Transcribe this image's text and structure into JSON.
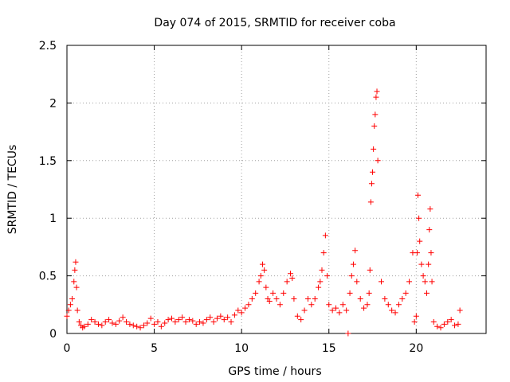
{
  "chart_data": {
    "type": "scatter",
    "title": "Day 074 of 2015, SRMTID for receiver coba",
    "xlabel": "GPS time / hours",
    "ylabel": "SRMTID / TECUs",
    "xlim": [
      0,
      24
    ],
    "ylim": [
      0,
      2.5
    ],
    "grid": true,
    "x_ticks": [
      0,
      5,
      10,
      15,
      20
    ],
    "x_tick_labels": [
      "0",
      "5",
      "10",
      "15",
      "20"
    ],
    "y_ticks": [
      0,
      0.5,
      1,
      1.5,
      2,
      2.5
    ],
    "y_tick_labels": [
      "0",
      "0.5",
      "1",
      "1.5",
      "2",
      "2.5"
    ],
    "marker": "+",
    "series": [
      {
        "name": "SRMTID",
        "color": "#ff0000",
        "x": [
          0.0,
          0.1,
          0.2,
          0.3,
          0.4,
          0.45,
          0.5,
          0.55,
          0.6,
          0.7,
          0.8,
          0.9,
          1.0,
          1.2,
          1.4,
          1.6,
          1.8,
          2.0,
          2.2,
          2.4,
          2.6,
          2.8,
          3.0,
          3.2,
          3.4,
          3.6,
          3.8,
          4.0,
          4.2,
          4.4,
          4.6,
          4.8,
          5.0,
          5.2,
          5.4,
          5.6,
          5.8,
          6.0,
          6.2,
          6.4,
          6.6,
          6.8,
          7.0,
          7.2,
          7.4,
          7.6,
          7.8,
          8.0,
          8.2,
          8.4,
          8.6,
          8.8,
          9.0,
          9.2,
          9.4,
          9.6,
          9.8,
          10.0,
          10.2,
          10.4,
          10.6,
          10.8,
          11.0,
          11.1,
          11.2,
          11.3,
          11.4,
          11.5,
          11.6,
          11.8,
          12.0,
          12.2,
          12.4,
          12.6,
          12.8,
          12.9,
          13.0,
          13.2,
          13.4,
          13.6,
          13.8,
          14.0,
          14.2,
          14.4,
          14.5,
          14.6,
          14.7,
          14.8,
          14.9,
          15.0,
          15.2,
          15.4,
          15.6,
          15.8,
          16.0,
          16.1,
          16.2,
          16.3,
          16.4,
          16.5,
          16.6,
          16.8,
          17.0,
          17.2,
          17.3,
          17.35,
          17.4,
          17.45,
          17.5,
          17.55,
          17.6,
          17.65,
          17.7,
          17.75,
          17.8,
          18.0,
          18.2,
          18.4,
          18.6,
          18.8,
          19.0,
          19.2,
          19.4,
          19.6,
          19.8,
          19.9,
          20.0,
          20.05,
          20.1,
          20.15,
          20.2,
          20.3,
          20.4,
          20.5,
          20.6,
          20.7,
          20.75,
          20.8,
          20.85,
          20.9,
          21.0,
          21.2,
          21.4,
          21.6,
          21.8,
          22.0,
          22.2,
          22.4,
          22.5
        ],
        "y": [
          0.15,
          0.2,
          0.25,
          0.3,
          0.45,
          0.55,
          0.62,
          0.4,
          0.2,
          0.1,
          0.07,
          0.05,
          0.06,
          0.08,
          0.12,
          0.1,
          0.08,
          0.07,
          0.1,
          0.12,
          0.09,
          0.08,
          0.11,
          0.14,
          0.1,
          0.08,
          0.07,
          0.06,
          0.05,
          0.07,
          0.09,
          0.13,
          0.08,
          0.1,
          0.06,
          0.09,
          0.12,
          0.13,
          0.1,
          0.12,
          0.14,
          0.1,
          0.12,
          0.11,
          0.08,
          0.1,
          0.09,
          0.12,
          0.14,
          0.1,
          0.13,
          0.15,
          0.12,
          0.14,
          0.1,
          0.16,
          0.2,
          0.18,
          0.22,
          0.25,
          0.3,
          0.35,
          0.45,
          0.5,
          0.6,
          0.55,
          0.4,
          0.3,
          0.28,
          0.35,
          0.3,
          0.25,
          0.35,
          0.45,
          0.52,
          0.48,
          0.3,
          0.15,
          0.12,
          0.2,
          0.3,
          0.25,
          0.3,
          0.4,
          0.45,
          0.55,
          0.7,
          0.85,
          0.5,
          0.25,
          0.2,
          0.22,
          0.18,
          0.25,
          0.2,
          0.0,
          0.35,
          0.5,
          0.6,
          0.72,
          0.45,
          0.3,
          0.22,
          0.25,
          0.35,
          0.55,
          1.14,
          1.3,
          1.4,
          1.6,
          1.8,
          1.9,
          2.05,
          2.1,
          1.5,
          0.45,
          0.3,
          0.25,
          0.2,
          0.18,
          0.25,
          0.3,
          0.35,
          0.45,
          0.7,
          0.1,
          0.15,
          0.7,
          1.2,
          1.0,
          0.8,
          0.6,
          0.5,
          0.45,
          0.35,
          0.6,
          0.9,
          1.08,
          0.7,
          0.45,
          0.1,
          0.06,
          0.05,
          0.08,
          0.1,
          0.12,
          0.07,
          0.08,
          0.2
        ]
      }
    ]
  }
}
